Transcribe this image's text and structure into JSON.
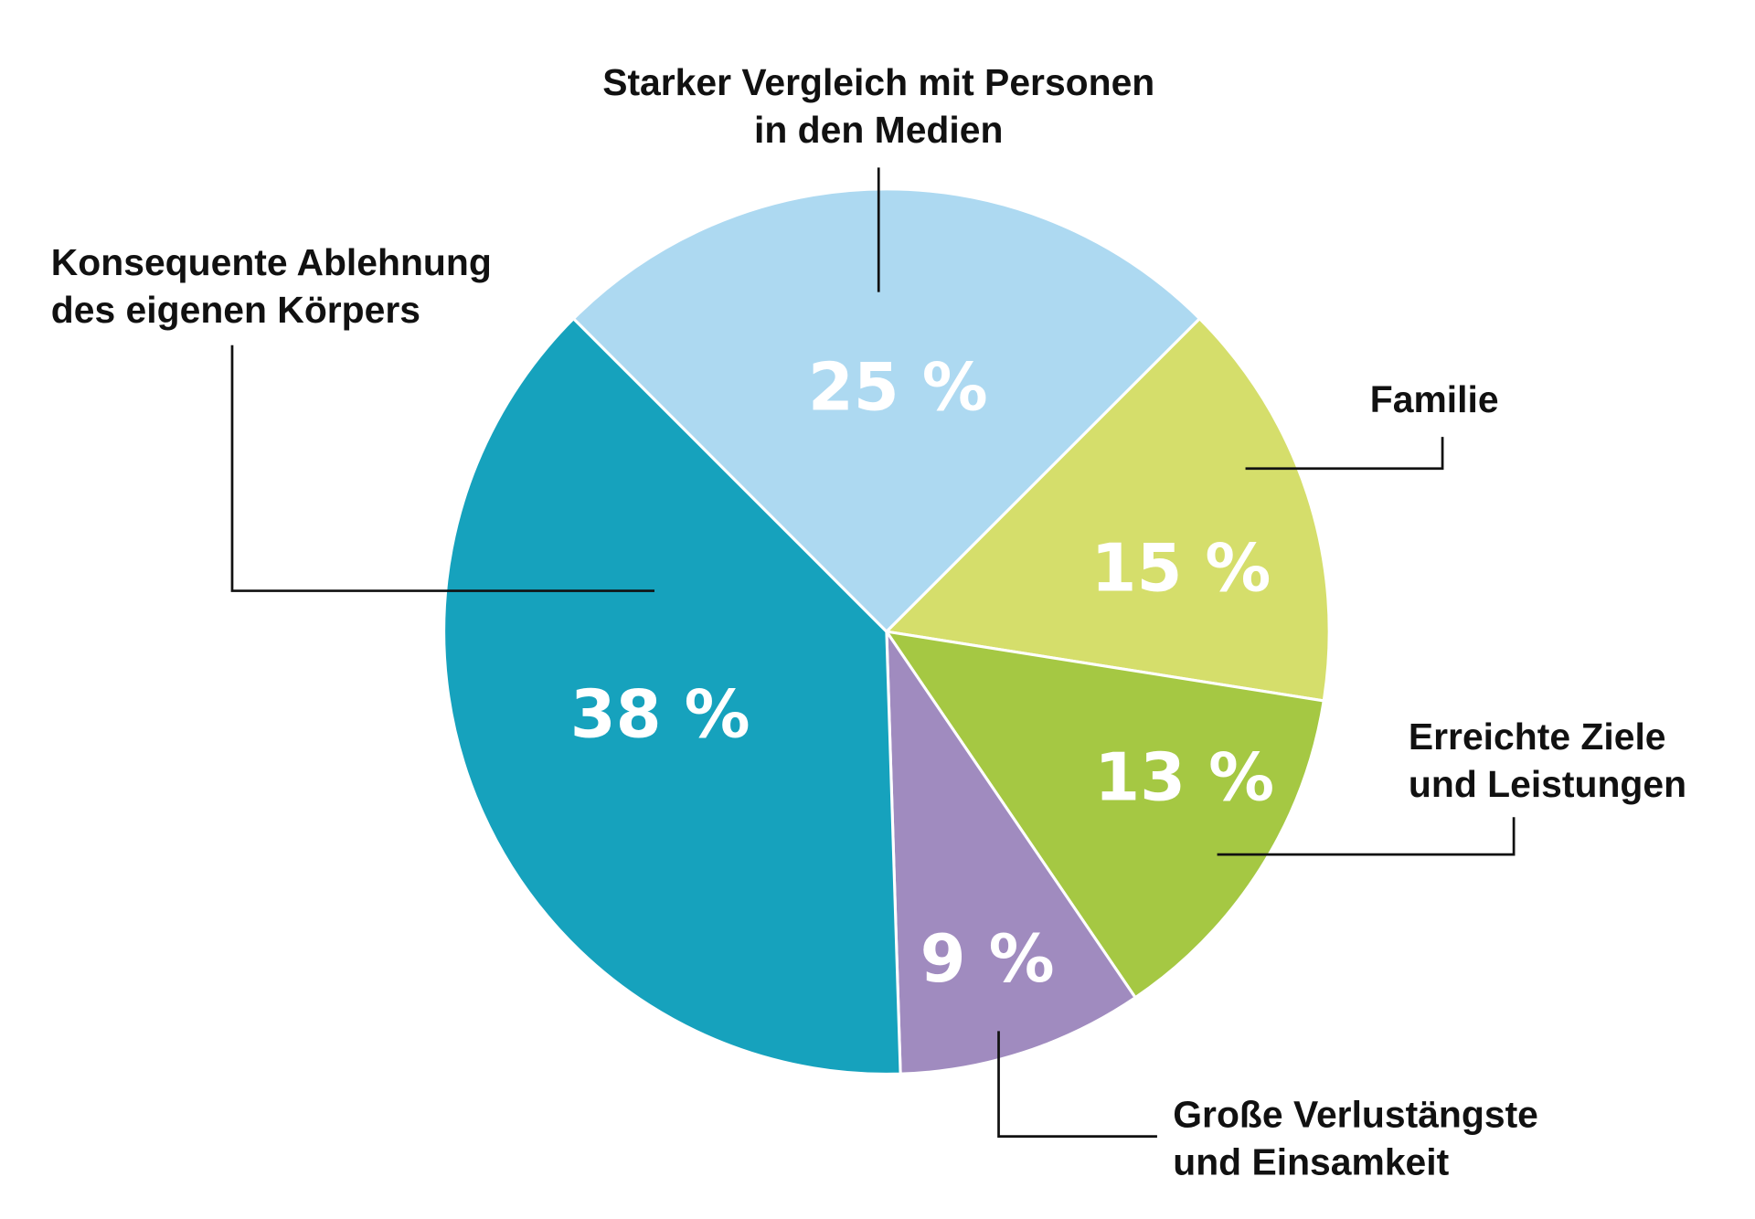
{
  "chart_data": {
    "type": "pie",
    "start_angle_deg_clockwise_from_top": 45,
    "direction": "clockwise",
    "slices": [
      {
        "label_lines": [
          "Familie"
        ],
        "value": 15,
        "value_label": "15 %",
        "color": "#d5de6b"
      },
      {
        "label_lines": [
          "Erreichte Ziele",
          "und Leistungen"
        ],
        "value": 13,
        "value_label": "13 %",
        "color": "#a5c843"
      },
      {
        "label_lines": [
          "Große Verlustängste",
          "und Einsamkeit"
        ],
        "value": 9,
        "value_label": "9 %",
        "color": "#a08bbf"
      },
      {
        "label_lines": [
          "Konsequente Ablehnung",
          "des eigenen Körpers"
        ],
        "value": 38,
        "value_label": "38 %",
        "color": "#16a2bd"
      },
      {
        "label_lines": [
          "Starker Vergleich mit Personen",
          "in den Medien"
        ],
        "value": 25,
        "value_label": "25 %",
        "color": "#add9f1"
      }
    ],
    "legend": "callout labels with leader lines"
  }
}
